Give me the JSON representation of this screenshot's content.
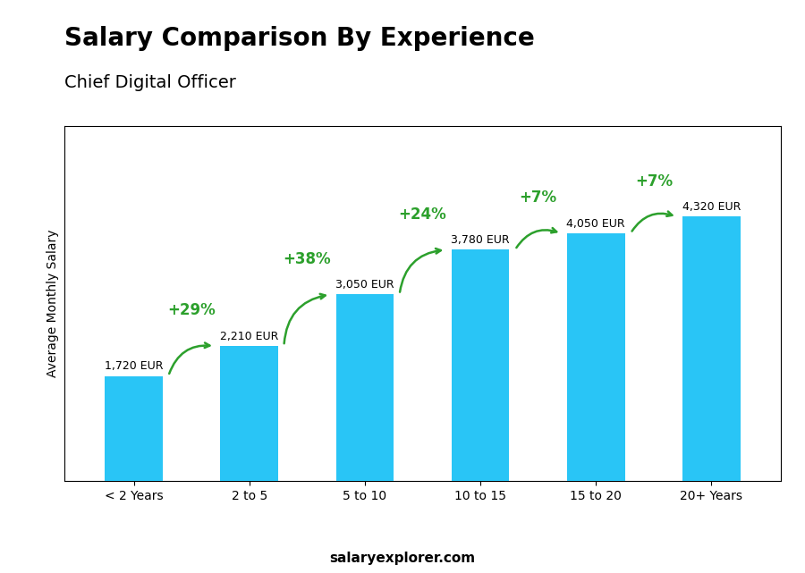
{
  "chart_data": {
    "type": "bar",
    "title": "Salary Comparison By Experience",
    "subtitle": "Chief Digital Officer",
    "y_label": "Average Monthly Salary",
    "categories": [
      "< 2 Years",
      "2 to 5",
      "5 to 10",
      "10 to 15",
      "15 to 20",
      "20+ Years"
    ],
    "values": [
      1720,
      2210,
      3050,
      3780,
      4050,
      4320
    ],
    "value_labels": [
      "1,720 EUR",
      "2,210 EUR",
      "3,050 EUR",
      "3,780 EUR",
      "4,050 EUR",
      "4,320 EUR"
    ],
    "data_labels": true,
    "annotations": [
      "+29%",
      "+38%",
      "+24%",
      "+7%",
      "+7%"
    ],
    "footer": "salaryexplorer.com",
    "color": "#29c5f6",
    "ylim": [
      0,
      5800
    ],
    "tick_labels": "x",
    "grid": false
  }
}
